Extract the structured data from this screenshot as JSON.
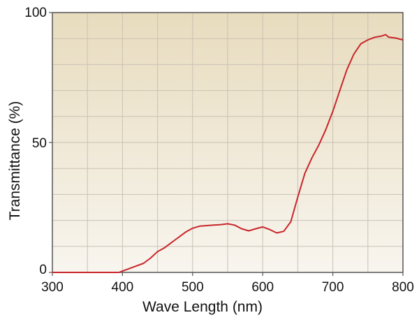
{
  "chart_data": {
    "type": "line",
    "title": "",
    "xlabel": "Wave Length (nm)",
    "ylabel": "Transmittance (%)",
    "xlim": [
      300,
      800
    ],
    "ylim": [
      0,
      100
    ],
    "x_ticks": [
      300,
      400,
      500,
      600,
      700,
      800
    ],
    "x_tick_labels": [
      "300",
      "400",
      "500",
      "600",
      "700",
      "800"
    ],
    "y_ticks": [
      0,
      50,
      100
    ],
    "y_tick_labels": [
      "0",
      "50",
      "100"
    ],
    "grid": true,
    "legend": "none",
    "colors": {
      "line": "#c8262a",
      "plot_bg_top": "#e8dcbe",
      "plot_bg_bottom": "#f8f5ef",
      "grid": "#c9c2b3",
      "axes": "#555555"
    },
    "series": [
      {
        "x": [
          300,
          320,
          340,
          360,
          380,
          395,
          400,
          410,
          420,
          430,
          440,
          450,
          460,
          470,
          480,
          490,
          500,
          510,
          520,
          530,
          540,
          550,
          560,
          570,
          580,
          590,
          600,
          610,
          620,
          630,
          640,
          650,
          660,
          670,
          680,
          690,
          700,
          710,
          720,
          730,
          740,
          750,
          760,
          770,
          775,
          780,
          790,
          795,
          800
        ],
        "y": [
          0,
          0,
          0,
          0,
          0,
          0,
          0.5,
          1.5,
          2.5,
          3.5,
          5.5,
          8,
          9.5,
          11.5,
          13.5,
          15.5,
          17,
          17.8,
          18,
          18.2,
          18.4,
          18.7,
          18.2,
          16.8,
          16,
          16.8,
          17.5,
          16.5,
          15.2,
          15.8,
          19.5,
          29,
          38,
          44,
          49,
          55,
          62,
          70,
          78,
          84,
          88,
          89.5,
          90.5,
          91,
          91.5,
          90.5,
          90.2,
          89.8,
          89.5
        ]
      }
    ]
  }
}
